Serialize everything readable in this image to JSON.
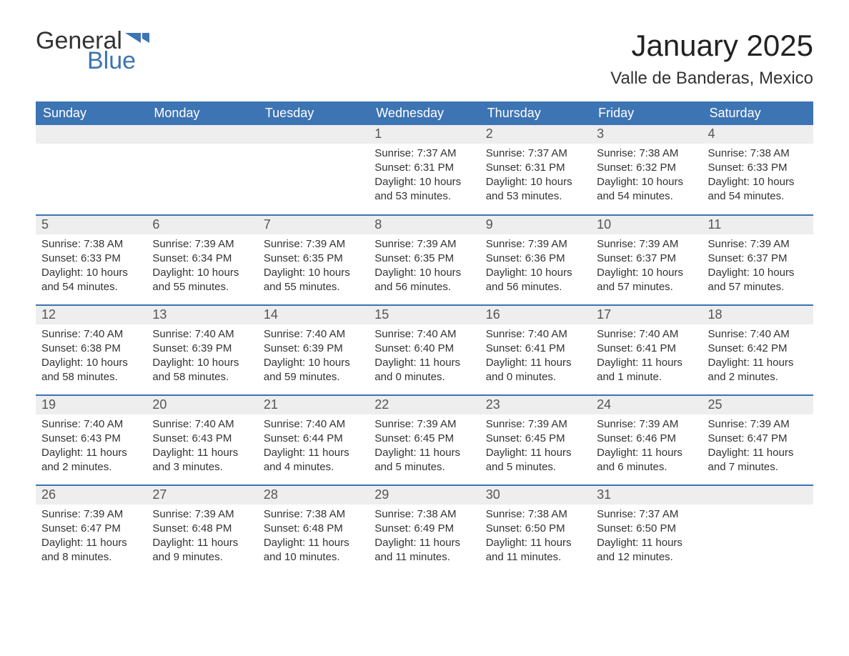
{
  "logo": {
    "text_general": "General",
    "text_blue": "Blue",
    "flag_color": "#3d74b3"
  },
  "title": "January 2025",
  "location": "Valle de Banderas, Mexico",
  "colors": {
    "header_bg": "#3d74b3",
    "header_text": "#ffffff",
    "daynum_bg": "#eeeeee",
    "daynum_text": "#555555",
    "body_text": "#333333",
    "row_border": "#3d74b3",
    "page_bg": "#ffffff"
  },
  "typography": {
    "month_title_fontsize": 42,
    "location_fontsize": 24,
    "dayheader_fontsize": 18,
    "daynum_fontsize": 18,
    "daybody_fontsize": 15,
    "logo_fontsize": 34
  },
  "day_headers": [
    "Sunday",
    "Monday",
    "Tuesday",
    "Wednesday",
    "Thursday",
    "Friday",
    "Saturday"
  ],
  "label_sunrise": "Sunrise: ",
  "label_sunset": "Sunset: ",
  "label_daylight": "Daylight: ",
  "weeks": [
    [
      {
        "empty": true
      },
      {
        "empty": true
      },
      {
        "empty": true
      },
      {
        "day": "1",
        "sunrise": "7:37 AM",
        "sunset": "6:31 PM",
        "daylight": "10 hours and 53 minutes."
      },
      {
        "day": "2",
        "sunrise": "7:37 AM",
        "sunset": "6:31 PM",
        "daylight": "10 hours and 53 minutes."
      },
      {
        "day": "3",
        "sunrise": "7:38 AM",
        "sunset": "6:32 PM",
        "daylight": "10 hours and 54 minutes."
      },
      {
        "day": "4",
        "sunrise": "7:38 AM",
        "sunset": "6:33 PM",
        "daylight": "10 hours and 54 minutes."
      }
    ],
    [
      {
        "day": "5",
        "sunrise": "7:38 AM",
        "sunset": "6:33 PM",
        "daylight": "10 hours and 54 minutes."
      },
      {
        "day": "6",
        "sunrise": "7:39 AM",
        "sunset": "6:34 PM",
        "daylight": "10 hours and 55 minutes."
      },
      {
        "day": "7",
        "sunrise": "7:39 AM",
        "sunset": "6:35 PM",
        "daylight": "10 hours and 55 minutes."
      },
      {
        "day": "8",
        "sunrise": "7:39 AM",
        "sunset": "6:35 PM",
        "daylight": "10 hours and 56 minutes."
      },
      {
        "day": "9",
        "sunrise": "7:39 AM",
        "sunset": "6:36 PM",
        "daylight": "10 hours and 56 minutes."
      },
      {
        "day": "10",
        "sunrise": "7:39 AM",
        "sunset": "6:37 PM",
        "daylight": "10 hours and 57 minutes."
      },
      {
        "day": "11",
        "sunrise": "7:39 AM",
        "sunset": "6:37 PM",
        "daylight": "10 hours and 57 minutes."
      }
    ],
    [
      {
        "day": "12",
        "sunrise": "7:40 AM",
        "sunset": "6:38 PM",
        "daylight": "10 hours and 58 minutes."
      },
      {
        "day": "13",
        "sunrise": "7:40 AM",
        "sunset": "6:39 PM",
        "daylight": "10 hours and 58 minutes."
      },
      {
        "day": "14",
        "sunrise": "7:40 AM",
        "sunset": "6:39 PM",
        "daylight": "10 hours and 59 minutes."
      },
      {
        "day": "15",
        "sunrise": "7:40 AM",
        "sunset": "6:40 PM",
        "daylight": "11 hours and 0 minutes."
      },
      {
        "day": "16",
        "sunrise": "7:40 AM",
        "sunset": "6:41 PM",
        "daylight": "11 hours and 0 minutes."
      },
      {
        "day": "17",
        "sunrise": "7:40 AM",
        "sunset": "6:41 PM",
        "daylight": "11 hours and 1 minute."
      },
      {
        "day": "18",
        "sunrise": "7:40 AM",
        "sunset": "6:42 PM",
        "daylight": "11 hours and 2 minutes."
      }
    ],
    [
      {
        "day": "19",
        "sunrise": "7:40 AM",
        "sunset": "6:43 PM",
        "daylight": "11 hours and 2 minutes."
      },
      {
        "day": "20",
        "sunrise": "7:40 AM",
        "sunset": "6:43 PM",
        "daylight": "11 hours and 3 minutes."
      },
      {
        "day": "21",
        "sunrise": "7:40 AM",
        "sunset": "6:44 PM",
        "daylight": "11 hours and 4 minutes."
      },
      {
        "day": "22",
        "sunrise": "7:39 AM",
        "sunset": "6:45 PM",
        "daylight": "11 hours and 5 minutes."
      },
      {
        "day": "23",
        "sunrise": "7:39 AM",
        "sunset": "6:45 PM",
        "daylight": "11 hours and 5 minutes."
      },
      {
        "day": "24",
        "sunrise": "7:39 AM",
        "sunset": "6:46 PM",
        "daylight": "11 hours and 6 minutes."
      },
      {
        "day": "25",
        "sunrise": "7:39 AM",
        "sunset": "6:47 PM",
        "daylight": "11 hours and 7 minutes."
      }
    ],
    [
      {
        "day": "26",
        "sunrise": "7:39 AM",
        "sunset": "6:47 PM",
        "daylight": "11 hours and 8 minutes."
      },
      {
        "day": "27",
        "sunrise": "7:39 AM",
        "sunset": "6:48 PM",
        "daylight": "11 hours and 9 minutes."
      },
      {
        "day": "28",
        "sunrise": "7:38 AM",
        "sunset": "6:48 PM",
        "daylight": "11 hours and 10 minutes."
      },
      {
        "day": "29",
        "sunrise": "7:38 AM",
        "sunset": "6:49 PM",
        "daylight": "11 hours and 11 minutes."
      },
      {
        "day": "30",
        "sunrise": "7:38 AM",
        "sunset": "6:50 PM",
        "daylight": "11 hours and 11 minutes."
      },
      {
        "day": "31",
        "sunrise": "7:37 AM",
        "sunset": "6:50 PM",
        "daylight": "11 hours and 12 minutes."
      },
      {
        "empty": true
      }
    ]
  ]
}
